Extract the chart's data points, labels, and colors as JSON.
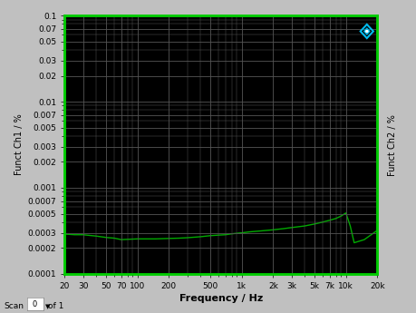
{
  "bg_color": "#c0c0c0",
  "plot_bg_color": "#000000",
  "line_color": "#00aa00",
  "grid_color": "#555555",
  "tick_label_color": "#000000",
  "axis_label_color": "#000000",
  "ylabel_left": "Funct Ch1 / %",
  "ylabel_right": "Funct Ch2 / %",
  "xlabel": "Frequency / Hz",
  "xmin": 20,
  "xmax": 20000,
  "ymin": 0.0001,
  "ymax": 0.1,
  "xtick_positions": [
    20,
    30,
    50,
    70,
    100,
    200,
    500,
    1000,
    2000,
    3000,
    5000,
    7000,
    10000,
    20000
  ],
  "xtick_labels": [
    "20",
    "30",
    "50",
    "70",
    "100",
    "200",
    "500",
    "1k",
    "2k",
    "3k",
    "5k",
    "7k",
    "10k",
    "20k"
  ],
  "ytick_positions": [
    0.0001,
    0.0002,
    0.0003,
    0.0005,
    0.0007,
    0.001,
    0.002,
    0.003,
    0.005,
    0.007,
    0.01,
    0.02,
    0.03,
    0.05,
    0.07,
    0.1
  ],
  "ytick_labels": [
    "0.0001",
    "0.0002",
    "0.0003",
    "0.0005",
    "0.0007",
    "0.001",
    "0.002",
    "0.003",
    "0.005",
    "0.007",
    "0.01",
    "0.02",
    "0.03",
    "0.05",
    "0.07",
    "0.1"
  ],
  "border_color": "#00cc00",
  "icon_color": "#00bbee",
  "freq": [
    20,
    25,
    30,
    40,
    50,
    60,
    70,
    80,
    100,
    120,
    150,
    200,
    250,
    300,
    400,
    500,
    600,
    700,
    800,
    1000,
    1200,
    1500,
    2000,
    2500,
    3000,
    4000,
    5000,
    6000,
    7000,
    8000,
    9000,
    10000,
    11000,
    12000,
    15000,
    20000
  ],
  "thdn": [
    0.00029,
    0.000285,
    0.000285,
    0.000275,
    0.000265,
    0.00026,
    0.00025,
    0.000252,
    0.000255,
    0.000255,
    0.000255,
    0.000258,
    0.00026,
    0.000263,
    0.00027,
    0.000278,
    0.000282,
    0.000285,
    0.000292,
    0.0003,
    0.000308,
    0.000315,
    0.000325,
    0.000335,
    0.000345,
    0.00036,
    0.00038,
    0.0004,
    0.00042,
    0.00044,
    0.00047,
    0.00051,
    0.00036,
    0.00023,
    0.00025,
    0.00032
  ]
}
